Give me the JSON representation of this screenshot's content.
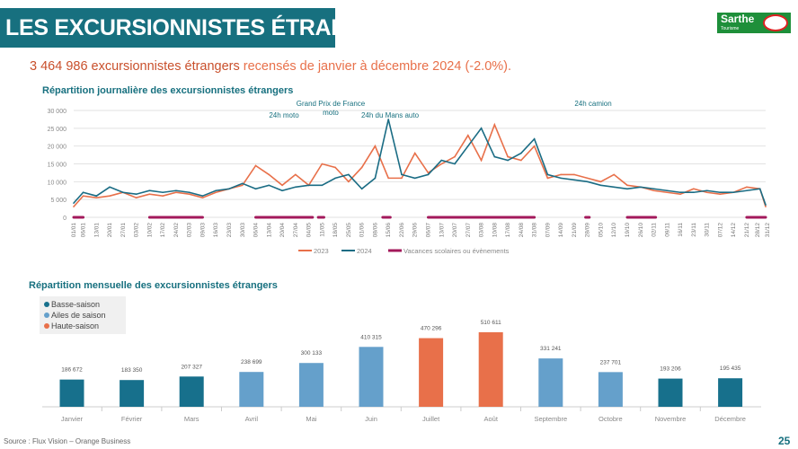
{
  "header": {
    "title": "LES EXCURSIONNISTES ÉTRANGERS",
    "logo_text": "Sarthe",
    "logo_subtext": "Tourisme"
  },
  "summary": {
    "highlight": "3 464 986 excursionnistes étrangers",
    "rest": " recensés de janvier à décembre 2024 (-2.0%)."
  },
  "colors": {
    "teal": "#17707f",
    "orange": "#e8704a",
    "line2024": "#1a6c84",
    "vacances": "#a3195b",
    "basse": "#17708c",
    "ailes": "#65a0cb",
    "haute": "#e8704a"
  },
  "footer": {
    "source": "Source : Flux Vision – Orange Business",
    "page": "25"
  },
  "chart_data": [
    {
      "type": "line",
      "title": "Répartition journalière des excursionnistes étrangers",
      "ylim": [
        0,
        30000
      ],
      "yticks": [
        "0",
        "5 000",
        "10 000",
        "15 000",
        "20 000",
        "25 000",
        "30 000"
      ],
      "ytick_values": [
        0,
        5000,
        10000,
        15000,
        20000,
        25000,
        30000
      ],
      "grid": true,
      "legend_position": "bottom",
      "x": [
        "01/01",
        "06/01",
        "13/01",
        "20/01",
        "27/01",
        "03/02",
        "10/02",
        "17/02",
        "24/02",
        "02/03",
        "09/03",
        "16/03",
        "23/03",
        "30/03",
        "06/04",
        "13/04",
        "20/04",
        "27/04",
        "04/05",
        "11/05",
        "18/05",
        "25/05",
        "01/06",
        "08/06",
        "15/06",
        "22/06",
        "29/06",
        "06/07",
        "13/07",
        "20/07",
        "27/07",
        "03/08",
        "10/08",
        "17/08",
        "24/08",
        "31/08",
        "07/09",
        "14/09",
        "21/09",
        "28/09",
        "05/10",
        "12/10",
        "19/10",
        "26/10",
        "02/11",
        "09/11",
        "16/11",
        "23/11",
        "30/11",
        "07/12",
        "14/12",
        "21/12",
        "28/12",
        "31/12"
      ],
      "series": [
        {
          "name": "2023",
          "color": "#e8704a",
          "values": [
            3000,
            6000,
            5500,
            6000,
            7000,
            5500,
            6500,
            6000,
            7000,
            6500,
            5500,
            7000,
            8000,
            9000,
            14500,
            12000,
            9000,
            12000,
            9000,
            15000,
            14000,
            10000,
            14000,
            20000,
            11000,
            11000,
            18000,
            12500,
            15000,
            17000,
            23000,
            16000,
            26000,
            17000,
            16000,
            20000,
            11000,
            12000,
            12000,
            11000,
            10000,
            12000,
            9000,
            8500,
            7500,
            7000,
            6500,
            8000,
            7000,
            6500,
            7000,
            8500,
            8000,
            3000
          ]
        },
        {
          "name": "2024",
          "color": "#1a6c84",
          "values": [
            4000,
            7000,
            6000,
            8500,
            7000,
            6500,
            7500,
            7000,
            7500,
            7000,
            6000,
            7500,
            8000,
            9500,
            8000,
            9000,
            7500,
            8500,
            9000,
            9000,
            11000,
            12000,
            8000,
            11000,
            27500,
            12000,
            11000,
            12000,
            16000,
            15000,
            20000,
            25000,
            17000,
            16000,
            18000,
            22000,
            12000,
            11000,
            10500,
            10000,
            9000,
            8500,
            8000,
            8500,
            8000,
            7500,
            7000,
            7000,
            7500,
            7000,
            7000,
            7500,
            8000,
            3500
          ]
        }
      ],
      "vacances": {
        "name": "Vacances scolaires ou évènements",
        "color": "#a3195b",
        "periods": [
          [
            "01/01",
            "06/01"
          ],
          [
            "10/02",
            "09/03"
          ],
          [
            "06/04",
            "06/05"
          ],
          [
            "09/05",
            "12/05"
          ],
          [
            "12/06",
            "16/06"
          ],
          [
            "06/07",
            "31/08"
          ],
          [
            "27/09",
            "29/09"
          ],
          [
            "19/10",
            "03/11"
          ],
          [
            "21/12",
            "31/12"
          ]
        ]
      },
      "annotations": [
        {
          "text": "24h moto",
          "at": "11/05"
        },
        {
          "text": "Grand Prix de France",
          "at": "15/05"
        },
        {
          "text": "moto",
          "at": "15/05"
        },
        {
          "text": "24h du Mans auto",
          "at": "15/06"
        },
        {
          "text": "24h camion",
          "at": "12/10"
        }
      ]
    },
    {
      "type": "bar",
      "title": "Répartition mensuelle des excursionnistes étrangers",
      "categories": [
        "Janvier",
        "Février",
        "Mars",
        "Avril",
        "Mai",
        "Juin",
        "Juillet",
        "Août",
        "Septembre",
        "Octobre",
        "Novembre",
        "Décembre"
      ],
      "values": [
        186672,
        183350,
        207327,
        238699,
        300133,
        410315,
        470296,
        510611,
        331241,
        237701,
        193206,
        195435
      ],
      "labels": [
        "186 672",
        "183 350",
        "207 327",
        "238 699",
        "300 133",
        "410 315",
        "470 296",
        "510 611",
        "331 241",
        "237 701",
        "193 206",
        "195 435"
      ],
      "season": [
        "basse",
        "basse",
        "basse",
        "ailes",
        "ailes",
        "ailes",
        "haute",
        "haute",
        "ailes",
        "ailes",
        "basse",
        "basse"
      ],
      "legend": [
        {
          "key": "basse",
          "name": "Basse-saison",
          "color": "#17708c"
        },
        {
          "key": "ailes",
          "name": "Ailes de saison",
          "color": "#65a0cb"
        },
        {
          "key": "haute",
          "name": "Haute-saison",
          "color": "#e8704a"
        }
      ],
      "legend_position": "top-left"
    }
  ]
}
